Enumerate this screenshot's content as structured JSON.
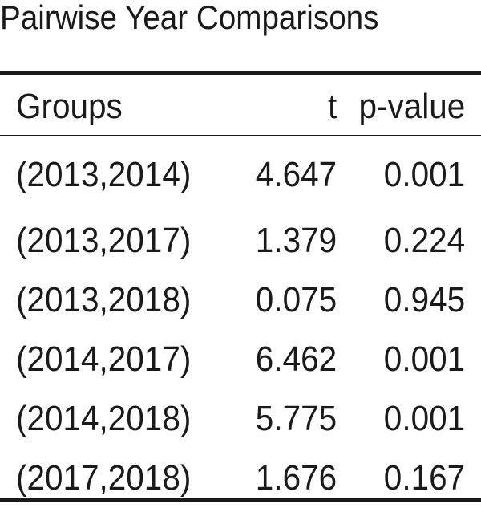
{
  "title": "Pairwise Year Comparisons",
  "table": {
    "headers": {
      "groups": "Groups",
      "t": "t",
      "p_value": "p-value"
    },
    "rows": [
      {
        "groups": "(2013,2014)",
        "t": "4.647",
        "p_value": "0.001"
      },
      {
        "groups": "(2013,2017)",
        "t": "1.379",
        "p_value": "0.224"
      },
      {
        "groups": "(2013,2018)",
        "t": "0.075",
        "p_value": "0.945"
      },
      {
        "groups": "(2014,2017)",
        "t": "6.462",
        "p_value": "0.001"
      },
      {
        "groups": "(2014,2018)",
        "t": "5.775",
        "p_value": "0.001"
      },
      {
        "groups": "(2017,2018)",
        "t": "1.676",
        "p_value": "0.167"
      }
    ]
  }
}
